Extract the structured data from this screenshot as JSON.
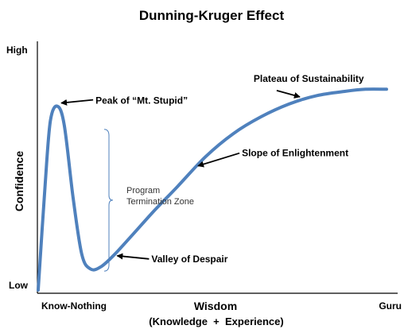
{
  "chart_data": {
    "type": "line",
    "title": "Dunning-Kruger Effect",
    "xlabel": "Wisdom",
    "xlabel_sub": "(Knowledge  +  Experience)",
    "ylabel": "Confidence",
    "x_tick_labels": [
      "Know-Nothing",
      "Guru"
    ],
    "y_tick_labels": [
      "Low",
      "High"
    ],
    "xlim": [
      0,
      100
    ],
    "ylim": [
      0,
      100
    ],
    "grid": false,
    "series": [
      {
        "color": "#4F81BD",
        "x": [
          0,
          2,
          3.5,
          5.5,
          7.5,
          10,
          12.5,
          15,
          18,
          22,
          27,
          33,
          40,
          48,
          56,
          64,
          72,
          80,
          88,
          94,
          100
        ],
        "y": [
          0,
          50,
          80,
          87,
          78,
          44,
          17,
          10,
          11,
          17,
          26,
          37,
          49,
          63,
          74,
          82,
          88,
          92,
          94,
          95,
          95
        ]
      }
    ],
    "annotations": [
      {
        "text": "Peak of “Mt. Stupid”",
        "point": [
          5.5,
          87
        ]
      },
      {
        "text": "Valley of Despair",
        "point": [
          22,
          17
        ]
      },
      {
        "text": "Slope of Enlightenment",
        "point": [
          45,
          58
        ]
      },
      {
        "text": "Plateau of Sustainability",
        "point": [
          76,
          91
        ]
      }
    ],
    "range_annotation": {
      "lines": [
        "Program",
        "Termination Zone"
      ],
      "y_range": [
        9,
        76
      ]
    },
    "colors": {
      "curve": "#4F81BD",
      "axes": "#000000",
      "arrows": "#000000",
      "bracket": "#4F81BD"
    }
  }
}
